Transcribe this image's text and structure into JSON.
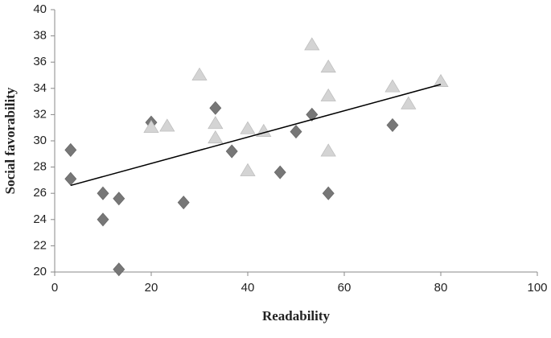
{
  "chart_data": {
    "type": "scatter",
    "xlabel": "Readability",
    "ylabel": "Social favorability",
    "xlim": [
      0,
      100
    ],
    "xticks": [
      0,
      20,
      40,
      60,
      80,
      100
    ],
    "ylim": [
      20,
      40
    ],
    "yticks": [
      20,
      22,
      24,
      26,
      28,
      30,
      32,
      34,
      36,
      38,
      40
    ],
    "grid": false,
    "series": [
      {
        "marker": "diamond",
        "color": "#777777",
        "x": [
          3.3,
          3.3,
          10,
          10,
          13.3,
          13.3,
          20,
          26.7,
          33.3,
          36.7,
          46.7,
          50,
          53.3,
          56.7,
          70
        ],
        "values": [
          29.3,
          27.1,
          26,
          24,
          25.6,
          20.2,
          31.4,
          25.3,
          32.5,
          29.2,
          27.6,
          30.7,
          32,
          26,
          31.2
        ]
      },
      {
        "marker": "triangle",
        "color": "#d4d4d4",
        "x": [
          20,
          23.3,
          30,
          33.3,
          33.3,
          40,
          40,
          43.3,
          53.3,
          56.7,
          56.7,
          56.7,
          70,
          73.3,
          80
        ],
        "values": [
          31,
          31.1,
          35,
          31.3,
          30.2,
          30.9,
          27.7,
          30.7,
          37.3,
          35.6,
          33.4,
          29.2,
          34.1,
          32.8,
          34.5
        ]
      }
    ],
    "trendline": {
      "color": "#000000",
      "x": [
        3.3,
        80
      ],
      "values": [
        26.6,
        34.3
      ]
    }
  }
}
